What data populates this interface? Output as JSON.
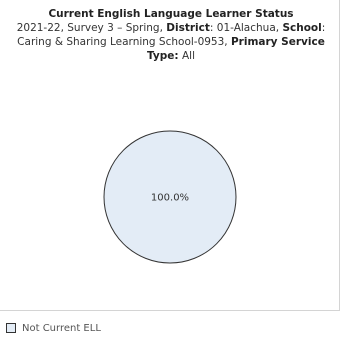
{
  "chart_data": {
    "type": "pie",
    "title": "Current English Language Learner Status",
    "subtitle": {
      "year_survey": "2021-22, Survey 3 – Spring,",
      "district_label": "District",
      "district_value": ": 01-Alachua,",
      "school_label": "School",
      "school_value": ": Caring & Sharing Learning School-0953,",
      "service_label": "Primary Service Type:",
      "service_value": " All"
    },
    "slices": [
      {
        "label": "Not Current ELL",
        "value": 100.0,
        "display": "100.0%",
        "color": "#e3ecf6"
      }
    ],
    "legend_position": "bottom-left"
  }
}
